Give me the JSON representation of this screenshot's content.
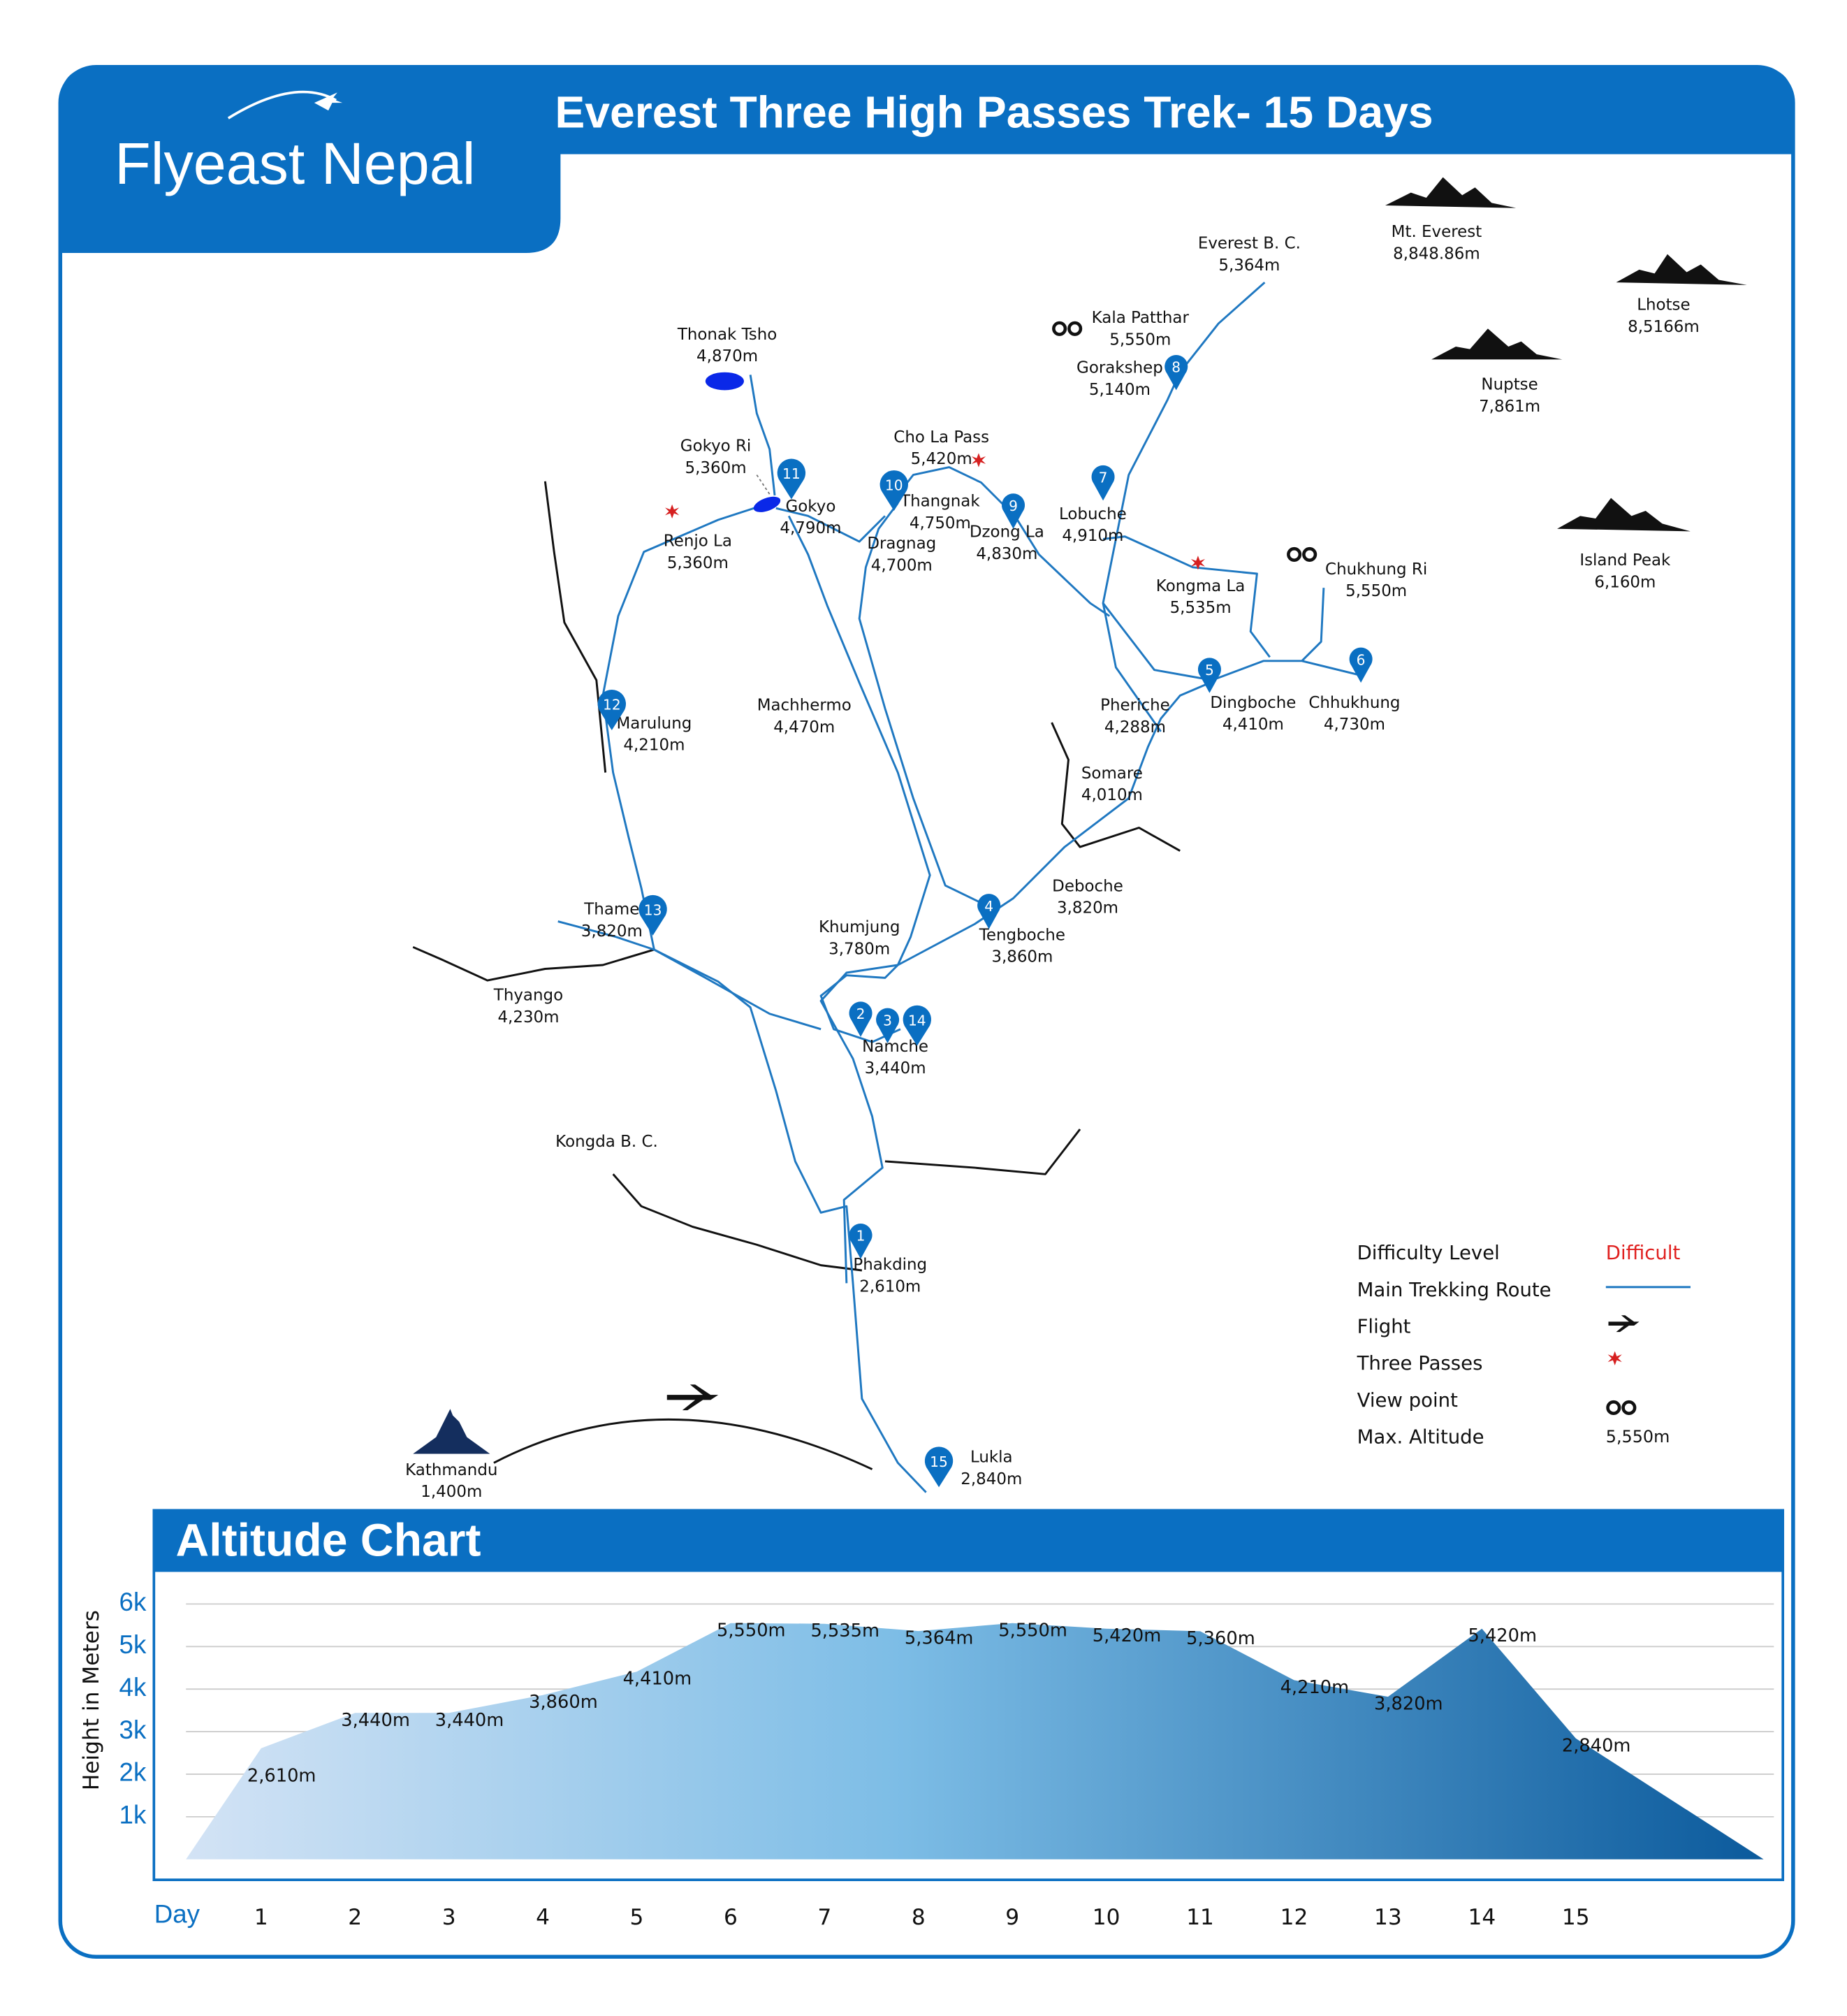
{
  "header": {
    "logo": "Flyeast Nepal",
    "title": "Everest Three High Passes Trek- 15 Days"
  },
  "map": {
    "places": [
      {
        "name": "Thonak Tsho",
        "altitude": "4,870m"
      },
      {
        "name": "Gokyo Ri",
        "altitude": "5,360m"
      },
      {
        "name": "Gokyo",
        "altitude": "4,790m"
      },
      {
        "name": "Renjo La",
        "altitude": "5,360m"
      },
      {
        "name": "Cho La Pass",
        "altitude": "5,420m"
      },
      {
        "name": "Thangnak",
        "altitude": "4,750m"
      },
      {
        "name": "Dragnag",
        "altitude": "4,700m"
      },
      {
        "name": "Dzong La",
        "altitude": "4,830m"
      },
      {
        "name": "Lobuche",
        "altitude": "4,910m"
      },
      {
        "name": "Kala Patthar",
        "altitude": "5,550m"
      },
      {
        "name": "Gorakshep",
        "altitude": "5,140m"
      },
      {
        "name": "Everest B. C.",
        "altitude": "5,364m"
      },
      {
        "name": "Kongma La",
        "altitude": "5,535m"
      },
      {
        "name": "Chukhung Ri",
        "altitude": "5,550m"
      },
      {
        "name": "Dingboche",
        "altitude": "4,410m"
      },
      {
        "name": "Chhukhung",
        "altitude": "4,730m"
      },
      {
        "name": "Pheriche",
        "altitude": "4,288m"
      },
      {
        "name": "Somare",
        "altitude": "4,010m"
      },
      {
        "name": "Deboche",
        "altitude": "3,820m"
      },
      {
        "name": "Tengboche",
        "altitude": "3,860m"
      },
      {
        "name": "Machhermo",
        "altitude": "4,470m"
      },
      {
        "name": "Marulung",
        "altitude": "4,210m"
      },
      {
        "name": "Thame",
        "altitude": "3,820m"
      },
      {
        "name": "Khumjung",
        "altitude": "3,780m"
      },
      {
        "name": "Thyango",
        "altitude": "4,230m"
      },
      {
        "name": "Namche",
        "altitude": "3,440m"
      },
      {
        "name": "Kongda B. C."
      },
      {
        "name": "Phakding",
        "altitude": "2,610m"
      },
      {
        "name": "Kathmandu",
        "altitude": "1,400m"
      },
      {
        "name": "Lukla",
        "altitude": "2,840m"
      }
    ],
    "mountains": [
      {
        "name": "Mt. Everest",
        "altitude": "8,848.86m"
      },
      {
        "name": "Lhotse",
        "altitude": "8,5166m"
      },
      {
        "name": "Nuptse",
        "altitude": "7,861m"
      },
      {
        "name": "Island Peak",
        "altitude": "6,160m"
      }
    ],
    "pins": [
      "1",
      "2",
      "3",
      "4",
      "5",
      "6",
      "7",
      "8",
      "9",
      "10",
      "11",
      "12",
      "13",
      "14",
      "15"
    ],
    "legend": [
      {
        "label": "Difficulty Level",
        "value": "Difficult"
      },
      {
        "label": "Main Trekking Route"
      },
      {
        "label": "Flight"
      },
      {
        "label": "Three Passes"
      },
      {
        "label": "View point"
      },
      {
        "label": "Max. Altitude",
        "value": "5,550m"
      }
    ]
  },
  "chart_data": {
    "type": "area",
    "title": "Altitude Chart",
    "ylabel": "Height in Meters",
    "xlabel": "Day",
    "x": [
      1,
      2,
      3,
      4,
      5,
      6,
      7,
      8,
      9,
      10,
      11,
      12,
      13,
      14,
      15
    ],
    "values": [
      2610,
      3440,
      3440,
      3860,
      4410,
      5550,
      5535,
      5364,
      5550,
      5420,
      5360,
      4210,
      3820,
      5420,
      2840
    ],
    "value_labels": [
      "2,610m",
      "3,440m",
      "3,440m",
      "3,860m",
      "4,410m",
      "5,550m",
      "5,535m",
      "5,364m",
      "5,550m",
      "5,420m",
      "5,360m",
      "4,210m",
      "3,820m",
      "5,420m",
      "2,840m"
    ],
    "xlim": [
      0.2,
      17
    ],
    "ylim": [
      0,
      6000
    ],
    "yticks": [
      {
        "value": 1000,
        "label": "1k"
      },
      {
        "value": 2000,
        "label": "2k"
      },
      {
        "value": 3000,
        "label": "3k"
      },
      {
        "value": 4000,
        "label": "4k"
      },
      {
        "value": 5000,
        "label": "5k"
      },
      {
        "value": 6000,
        "label": "6k"
      }
    ],
    "grid": true
  }
}
